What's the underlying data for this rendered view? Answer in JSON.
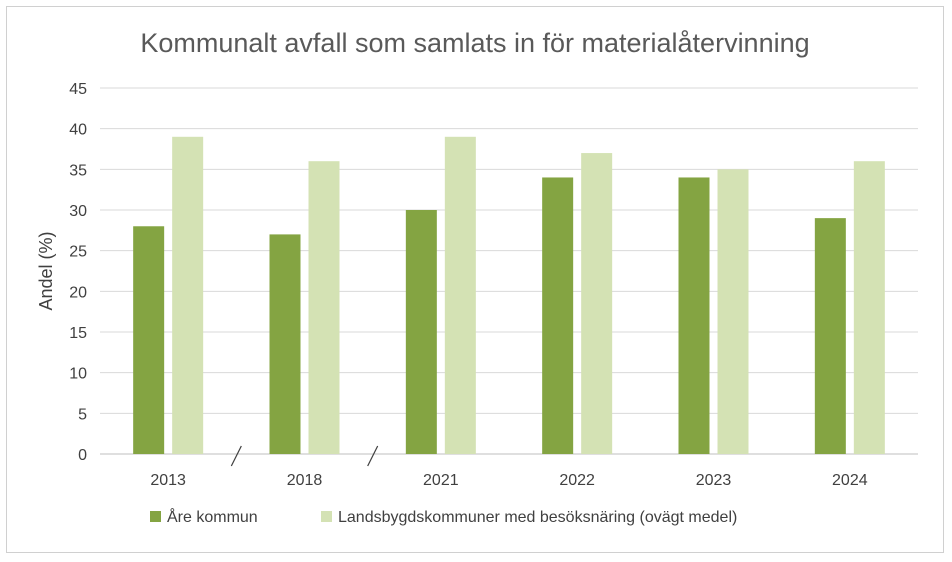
{
  "chart_data": {
    "type": "bar",
    "title": "Kommunalt avfall som samlats in för materialåtervinning",
    "ylabel": "Andel (%)",
    "xlabel": "",
    "categories": [
      "2013",
      "2018",
      "2021",
      "2022",
      "2023",
      "2024"
    ],
    "series": [
      {
        "name": "Åre kommun",
        "values": [
          28,
          27,
          30,
          34,
          34,
          29
        ],
        "color": "#84a442"
      },
      {
        "name": "Landsbygdskommuner med besöksnäring (ovägt medel)",
        "values": [
          39,
          36,
          39,
          37,
          35,
          36
        ],
        "color": "#d4e2b4"
      }
    ],
    "ylim": [
      0,
      45
    ],
    "yticks": [
      0,
      5,
      10,
      15,
      20,
      25,
      30,
      35,
      40,
      45
    ],
    "grid": true,
    "axis_breaks_after": [
      "2013",
      "2018"
    ],
    "legend_position": "bottom"
  }
}
